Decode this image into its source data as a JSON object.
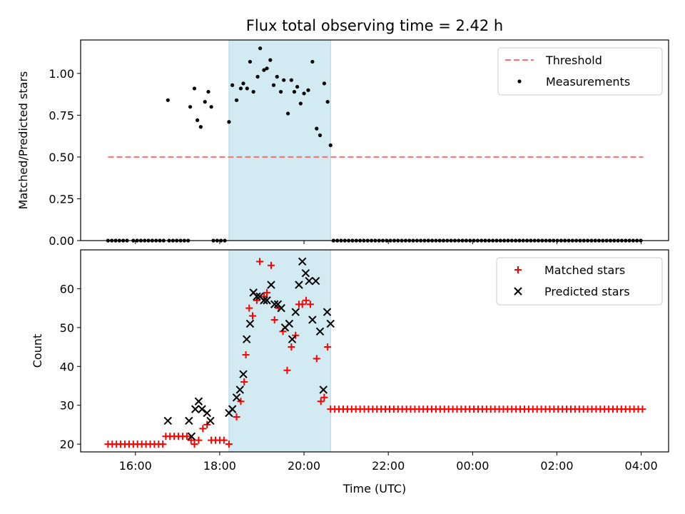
{
  "title": "Flux total observing time = 2.42 h",
  "colors": {
    "threshold": "#ff6f6f",
    "span": "#add8e6",
    "matched": "#ff0000",
    "predicted": "#000000",
    "measurement": "#000000"
  },
  "x_tick_labels": [
    "16:00",
    "18:00",
    "20:00",
    "22:00",
    "00:00",
    "02:00",
    "04:00"
  ],
  "chart_data": [
    {
      "type": "scatter",
      "title": "Flux total observing time = 2.42 h",
      "xlabel": "",
      "ylabel": "Matched/Predicted stars",
      "xlim": [
        14.7,
        28.65
      ],
      "ylim": [
        0,
        1.2
      ],
      "x_unit": "hours since 00:00 UTC (values above 24 = next day)",
      "yticks": [
        "0.00",
        "0.25",
        "0.50",
        "0.75",
        "1.00"
      ],
      "ytick_values": [
        0,
        0.25,
        0.5,
        0.75,
        1.0
      ],
      "shaded_span": [
        18.22,
        20.63
      ],
      "threshold": {
        "label": "Threshold",
        "value": 0.5,
        "x_range": [
          15.35,
          28.05
        ]
      },
      "legend": {
        "location": "upper right",
        "entries": [
          "Threshold",
          "Measurements"
        ]
      },
      "series": [
        {
          "name": "Measurements",
          "marker": "dot",
          "points": [
            [
              16.77,
              0.84
            ],
            [
              17.3,
              0.8
            ],
            [
              17.4,
              0.91
            ],
            [
              17.47,
              0.72
            ],
            [
              17.55,
              0.68
            ],
            [
              17.65,
              0.83
            ],
            [
              17.73,
              0.89
            ],
            [
              17.8,
              0.8
            ],
            [
              18.22,
              0.71
            ],
            [
              18.3,
              0.93
            ],
            [
              18.4,
              0.84
            ],
            [
              18.5,
              0.91
            ],
            [
              18.56,
              0.94
            ],
            [
              18.65,
              0.91
            ],
            [
              18.72,
              1.07
            ],
            [
              18.8,
              0.89
            ],
            [
              18.9,
              0.98
            ],
            [
              18.96,
              1.15
            ],
            [
              19.05,
              1.02
            ],
            [
              19.12,
              1.03
            ],
            [
              19.2,
              1.08
            ],
            [
              19.28,
              0.93
            ],
            [
              19.36,
              0.98
            ],
            [
              19.45,
              0.89
            ],
            [
              19.52,
              0.96
            ],
            [
              19.62,
              0.76
            ],
            [
              19.7,
              0.96
            ],
            [
              19.77,
              0.89
            ],
            [
              19.84,
              0.92
            ],
            [
              19.92,
              0.82
            ],
            [
              20.0,
              0.88
            ],
            [
              20.1,
              0.9
            ],
            [
              20.2,
              1.07
            ],
            [
              20.3,
              0.67
            ],
            [
              20.38,
              0.63
            ],
            [
              20.48,
              0.94
            ],
            [
              20.56,
              0.83
            ],
            [
              20.63,
              0.57
            ]
          ],
          "zero_runs": [
            [
              15.35,
              15.8
            ],
            [
              15.95,
              16.7
            ],
            [
              16.8,
              17.3
            ],
            [
              17.85,
              18.15
            ],
            [
              20.7,
              28.05
            ]
          ]
        }
      ]
    },
    {
      "type": "scatter",
      "title": "",
      "xlabel": "Time (UTC)",
      "ylabel": "Count",
      "xlim": [
        14.7,
        28.65
      ],
      "ylim": [
        18,
        70
      ],
      "yticks": [
        "20",
        "30",
        "40",
        "50",
        "60"
      ],
      "ytick_values": [
        20,
        30,
        40,
        50,
        60
      ],
      "legend": {
        "location": "upper right",
        "entries": [
          "Matched stars",
          "Predicted stars"
        ]
      },
      "series": [
        {
          "name": "Matched stars",
          "marker": "plus",
          "points": [
            [
              16.72,
              22
            ],
            [
              16.82,
              22
            ],
            [
              16.92,
              22
            ],
            [
              17.02,
              22
            ],
            [
              17.12,
              22
            ],
            [
              17.22,
              22
            ],
            [
              17.32,
              21
            ],
            [
              17.4,
              20
            ],
            [
              17.5,
              21
            ],
            [
              17.6,
              24
            ],
            [
              17.7,
              25
            ],
            [
              17.8,
              21
            ],
            [
              17.9,
              21
            ],
            [
              18.0,
              21
            ],
            [
              18.1,
              21
            ],
            [
              18.22,
              20
            ],
            [
              18.4,
              27
            ],
            [
              18.5,
              31
            ],
            [
              18.58,
              36
            ],
            [
              18.62,
              43
            ],
            [
              18.7,
              55
            ],
            [
              18.78,
              53
            ],
            [
              18.88,
              57
            ],
            [
              18.95,
              67
            ],
            [
              19.05,
              58
            ],
            [
              19.12,
              59
            ],
            [
              19.22,
              66
            ],
            [
              19.3,
              52
            ],
            [
              19.4,
              55
            ],
            [
              19.5,
              49
            ],
            [
              19.6,
              39
            ],
            [
              19.7,
              45
            ],
            [
              19.8,
              48
            ],
            [
              19.88,
              56
            ],
            [
              19.96,
              56
            ],
            [
              20.05,
              57
            ],
            [
              20.15,
              56
            ],
            [
              20.3,
              42
            ],
            [
              20.4,
              31
            ],
            [
              20.48,
              32
            ],
            [
              20.56,
              45
            ]
          ],
          "baseline_runs": [
            {
              "y": 20,
              "x_from": 15.35,
              "x_to": 16.65
            },
            {
              "y": 29,
              "x_from": 20.63,
              "x_to": 28.1
            }
          ]
        },
        {
          "name": "Predicted stars",
          "marker": "x",
          "points": [
            [
              16.77,
              26
            ],
            [
              17.27,
              26
            ],
            [
              17.33,
              22
            ],
            [
              17.42,
              29
            ],
            [
              17.5,
              31
            ],
            [
              17.58,
              29
            ],
            [
              17.7,
              28
            ],
            [
              17.78,
              26
            ],
            [
              18.22,
              28
            ],
            [
              18.3,
              29
            ],
            [
              18.4,
              32
            ],
            [
              18.48,
              34
            ],
            [
              18.56,
              38
            ],
            [
              18.64,
              47
            ],
            [
              18.72,
              51
            ],
            [
              18.8,
              59
            ],
            [
              18.88,
              58
            ],
            [
              18.95,
              58
            ],
            [
              19.05,
              57
            ],
            [
              19.12,
              57
            ],
            [
              19.22,
              61
            ],
            [
              19.3,
              56
            ],
            [
              19.38,
              56
            ],
            [
              19.46,
              55
            ],
            [
              19.55,
              50
            ],
            [
              19.65,
              51
            ],
            [
              19.72,
              47
            ],
            [
              19.8,
              54
            ],
            [
              19.88,
              61
            ],
            [
              19.96,
              67
            ],
            [
              20.04,
              64
            ],
            [
              20.12,
              62
            ],
            [
              20.2,
              52
            ],
            [
              20.28,
              62
            ],
            [
              20.38,
              49
            ],
            [
              20.46,
              34
            ],
            [
              20.55,
              54
            ],
            [
              20.63,
              51
            ]
          ]
        }
      ]
    }
  ]
}
